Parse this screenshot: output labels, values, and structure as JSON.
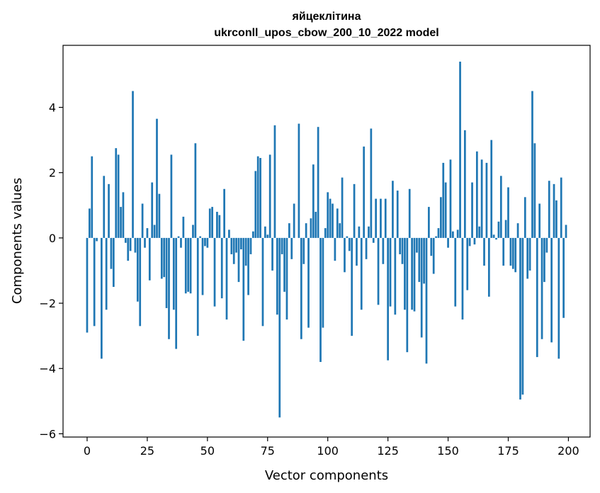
{
  "chart_data": {
    "type": "bar",
    "title_line1": "яйцеклітина",
    "title_line2": "ukrconll_upos_cbow_200_10_2022 model",
    "xlabel": "Vector components",
    "ylabel": "Components values",
    "xlim": [
      -10,
      209
    ],
    "ylim": [
      -6.1,
      5.9
    ],
    "xticks": [
      0,
      25,
      50,
      75,
      100,
      125,
      150,
      175,
      200
    ],
    "yticks": [
      -6,
      -4,
      -2,
      0,
      2,
      4
    ],
    "ytick_labels": [
      "−6",
      "−4",
      "−2",
      "0",
      "2",
      "4"
    ],
    "grid": false,
    "bar_color": "#1f77b4",
    "values": [
      -2.9,
      0.9,
      2.5,
      -2.7,
      -0.1,
      0,
      -3.7,
      1.9,
      -2.2,
      1.65,
      -0.95,
      -1.5,
      2.75,
      2.55,
      0.95,
      1.4,
      -0.15,
      -0.7,
      -0.4,
      4.5,
      -0.45,
      -1.95,
      -2.7,
      1.05,
      -0.3,
      0.3,
      -1.3,
      1.7,
      0.4,
      3.65,
      1.35,
      -1.25,
      -1.2,
      -2.15,
      -3.1,
      2.55,
      -2.2,
      -3.4,
      0.05,
      -0.3,
      0.65,
      -1.7,
      -1.65,
      -1.7,
      0.4,
      2.9,
      -3.0,
      0.05,
      -1.75,
      -0.25,
      -0.3,
      0.9,
      0.95,
      -2.1,
      0.8,
      0.7,
      -1.85,
      1.5,
      -2.5,
      0.25,
      -0.5,
      -0.8,
      -0.45,
      -1.35,
      -0.35,
      -3.15,
      -0.85,
      -1.75,
      -0.5,
      0.2,
      2.05,
      2.5,
      2.45,
      -2.7,
      0.35,
      0.1,
      2.55,
      -1.0,
      3.45,
      -2.35,
      -5.5,
      -0.5,
      -1.65,
      -2.5,
      0.45,
      -0.65,
      1.05,
      0.0,
      3.5,
      -3.1,
      -0.8,
      0.45,
      -2.75,
      0.6,
      2.25,
      0.8,
      3.4,
      -3.8,
      -2.75,
      0.3,
      1.4,
      1.2,
      1.05,
      -0.7,
      0.9,
      0.45,
      1.85,
      -1.05,
      0.05,
      -0.4,
      -3.0,
      1.65,
      -0.85,
      0.35,
      -2.2,
      2.8,
      -0.65,
      0.35,
      3.35,
      -0.15,
      1.2,
      -2.05,
      1.2,
      -0.8,
      1.2,
      -3.75,
      -2.1,
      1.75,
      -2.35,
      1.45,
      -0.5,
      -0.8,
      -2.2,
      -3.5,
      1.5,
      -2.2,
      -2.25,
      -0.45,
      -1.35,
      -3.05,
      -1.4,
      -3.85,
      0.95,
      -0.55,
      -1.1,
      0.05,
      0.3,
      1.25,
      2.3,
      1.7,
      -0.3,
      2.4,
      0.2,
      -2.1,
      0.25,
      5.4,
      -2.5,
      3.3,
      -1.6,
      -0.25,
      1.7,
      -0.2,
      2.65,
      0.35,
      2.4,
      -0.85,
      2.3,
      -1.8,
      3.0,
      0.1,
      -0.05,
      0.5,
      1.9,
      -0.85,
      0.55,
      1.55,
      -0.85,
      -0.95,
      -1.05,
      0.45,
      -4.95,
      -4.8,
      1.25,
      -1.25,
      -1.0,
      4.5,
      2.9,
      -3.65,
      1.05,
      -3.1,
      -1.35,
      -0.45,
      1.75,
      -3.2,
      1.65,
      1.15,
      -3.7,
      1.85,
      -2.45,
      0.4
    ]
  }
}
